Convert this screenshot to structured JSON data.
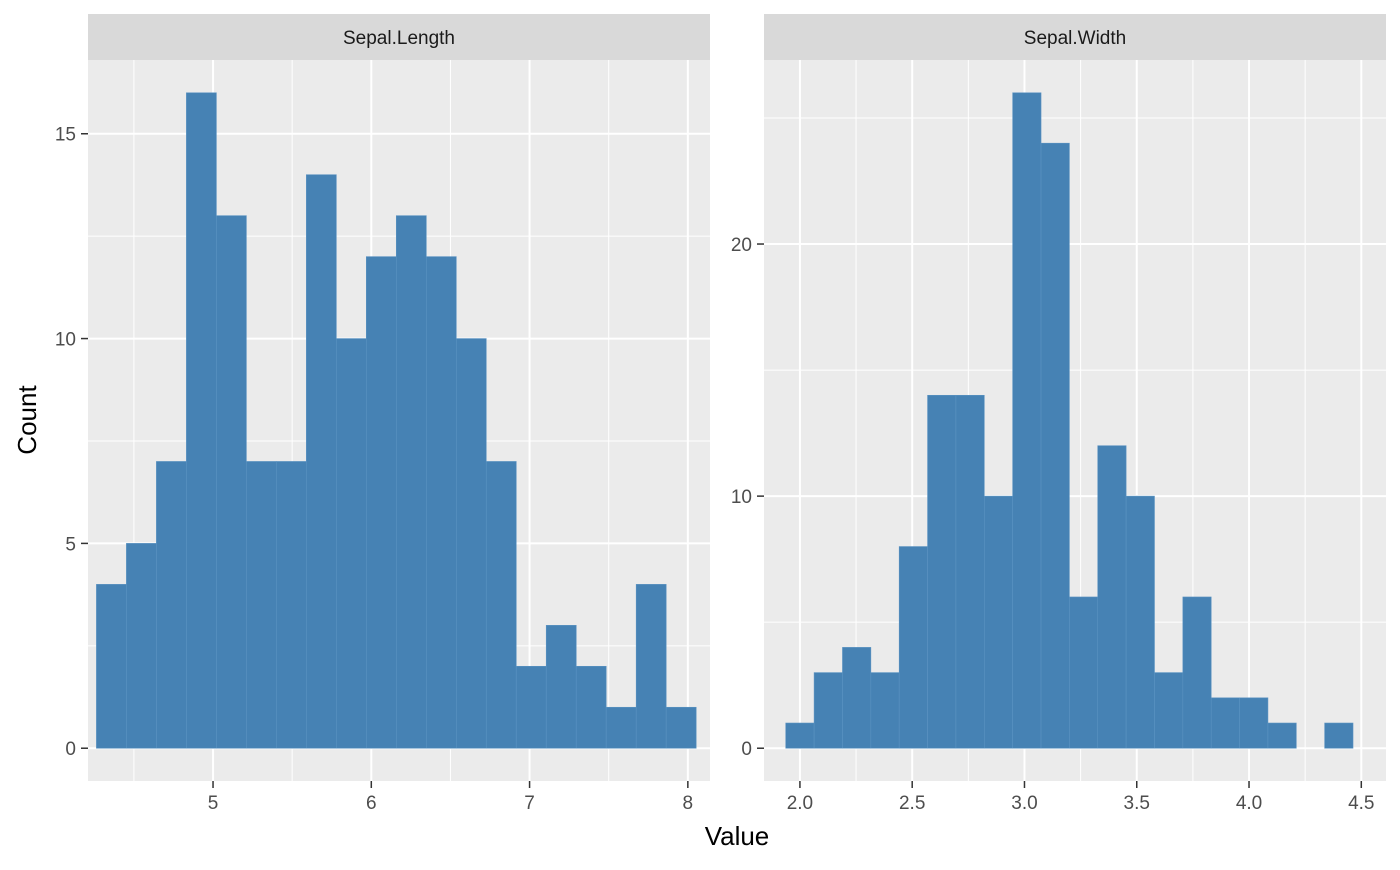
{
  "chart_data": {
    "type": "bar",
    "xlabel": "Value",
    "ylabel": "Count",
    "bar_color": "#4682B4",
    "panel_background": "#EBEBEB",
    "strip_background": "#D9D9D9",
    "grid": true,
    "panels": [
      {
        "title": "Sepal.Length",
        "xlim": [
          4.21,
          8.14
        ],
        "ylim": [
          -0.8,
          16.8
        ],
        "xticks": [
          5,
          6,
          7,
          8
        ],
        "xtick_labels": [
          "5",
          "6",
          "7",
          "8"
        ],
        "yticks": [
          0,
          5,
          10,
          15
        ],
        "ytick_labels": [
          "0",
          "5",
          "10",
          "15"
        ],
        "bin_width": 0.1895,
        "bins": [
          {
            "start": 4.2632,
            "count": 4
          },
          {
            "start": 4.4526,
            "count": 5
          },
          {
            "start": 4.6421,
            "count": 7
          },
          {
            "start": 4.8316,
            "count": 16
          },
          {
            "start": 5.0211,
            "count": 13
          },
          {
            "start": 5.2105,
            "count": 7
          },
          {
            "start": 5.4,
            "count": 7
          },
          {
            "start": 5.5895,
            "count": 14
          },
          {
            "start": 5.7789,
            "count": 10
          },
          {
            "start": 5.9684,
            "count": 12
          },
          {
            "start": 6.1579,
            "count": 13
          },
          {
            "start": 6.3474,
            "count": 12
          },
          {
            "start": 6.5368,
            "count": 10
          },
          {
            "start": 6.7263,
            "count": 7
          },
          {
            "start": 6.9158,
            "count": 2
          },
          {
            "start": 7.1053,
            "count": 3
          },
          {
            "start": 7.2947,
            "count": 2
          },
          {
            "start": 7.4842,
            "count": 1
          },
          {
            "start": 7.6737,
            "count": 4
          },
          {
            "start": 7.8632,
            "count": 1
          }
        ]
      },
      {
        "title": "Sepal.Width",
        "xlim": [
          1.84,
          4.61
        ],
        "ylim": [
          -1.3,
          27.3
        ],
        "xticks": [
          2.0,
          2.5,
          3.0,
          3.5,
          4.0,
          4.5
        ],
        "xtick_labels": [
          "2.0",
          "2.5",
          "3.0",
          "3.5",
          "4.0",
          "4.5"
        ],
        "yticks": [
          0,
          10,
          20
        ],
        "ytick_labels": [
          "0",
          "10",
          "20"
        ],
        "bin_width": 0.1263,
        "bins": [
          {
            "start": 1.9368,
            "count": 1
          },
          {
            "start": 2.0632,
            "count": 3
          },
          {
            "start": 2.1895,
            "count": 4
          },
          {
            "start": 2.3158,
            "count": 3
          },
          {
            "start": 2.4421,
            "count": 8
          },
          {
            "start": 2.5684,
            "count": 14
          },
          {
            "start": 2.6947,
            "count": 14
          },
          {
            "start": 2.8211,
            "count": 10
          },
          {
            "start": 2.9474,
            "count": 26
          },
          {
            "start": 3.0737,
            "count": 24
          },
          {
            "start": 3.2,
            "count": 6
          },
          {
            "start": 3.3263,
            "count": 12
          },
          {
            "start": 3.4526,
            "count": 10
          },
          {
            "start": 3.5789,
            "count": 3
          },
          {
            "start": 3.7053,
            "count": 6
          },
          {
            "start": 3.8316,
            "count": 2
          },
          {
            "start": 3.9579,
            "count": 2
          },
          {
            "start": 4.0842,
            "count": 1
          },
          {
            "start": 4.2105,
            "count": 0
          },
          {
            "start": 4.3368,
            "count": 1
          }
        ]
      }
    ]
  }
}
